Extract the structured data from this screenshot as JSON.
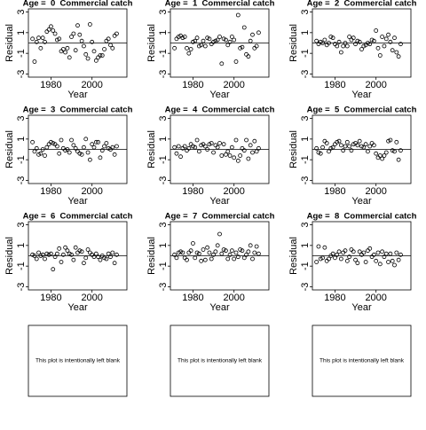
{
  "chart_data": [
    {
      "type": "scatter",
      "title": "Age =  0  Commercial catch",
      "x_label": "Year",
      "y_label": "Residual",
      "color": "#000000",
      "hline": 0,
      "xlim": [
        1969,
        2017
      ],
      "ylim": [
        -3.3,
        3.3
      ],
      "xticks": [
        1980,
        2000
      ],
      "yticks": [
        -3,
        -1,
        1,
        3
      ],
      "x": [
        1971,
        1972,
        1973,
        1974,
        1975,
        1976,
        1977,
        1978,
        1979,
        1980,
        1981,
        1982,
        1983,
        1984,
        1985,
        1986,
        1987,
        1988,
        1989,
        1990,
        1991,
        1992,
        1993,
        1994,
        1995,
        1996,
        1997,
        1998,
        1999,
        2000,
        2001,
        2002,
        2003,
        2004,
        2005,
        2006,
        2007,
        2008,
        2009,
        2010,
        2011,
        2012
      ],
      "values": [
        0.4,
        -1.8,
        0.1,
        0.5,
        -0.5,
        0.5,
        0.1,
        1.1,
        1.3,
        1.6,
        1.2,
        0.9,
        0.3,
        0.4,
        -0.8,
        -0.6,
        -0.9,
        -0.5,
        -1.4,
        0.6,
        0.9,
        -0.7,
        1.7,
        0.8,
        0.2,
        -0.3,
        -1.1,
        -1.5,
        1.8,
        0.1,
        -0.8,
        -1.7,
        -1.4,
        -1.2,
        -1.2,
        -0.6,
        0.2,
        0.4,
        -0.2,
        -0.5,
        0.7,
        0.9
      ]
    },
    {
      "type": "scatter",
      "title": "Age =  1  Commercial catch",
      "x_label": "Year",
      "y_label": "Residual",
      "color": "#000000",
      "hline": 0,
      "xlim": [
        1969,
        2017
      ],
      "ylim": [
        -3.3,
        3.3
      ],
      "xticks": [
        1980,
        2000
      ],
      "yticks": [
        -3,
        -1,
        1,
        3
      ],
      "x": [
        1971,
        1972,
        1973,
        1974,
        1975,
        1976,
        1977,
        1978,
        1979,
        1980,
        1981,
        1982,
        1983,
        1984,
        1985,
        1986,
        1987,
        1988,
        1989,
        1990,
        1991,
        1992,
        1993,
        1994,
        1995,
        1996,
        1997,
        1998,
        1999,
        2000,
        2001,
        2002,
        2003,
        2004,
        2005,
        2006,
        2007,
        2008,
        2009,
        2010,
        2011,
        2012
      ],
      "values": [
        -0.5,
        0.4,
        0.6,
        0.7,
        0.5,
        0.6,
        -0.5,
        -1.0,
        -0.6,
        0.1,
        0.2,
        0.5,
        -0.3,
        -0.2,
        0.2,
        -0.3,
        0.5,
        0.4,
        -0.1,
        0.1,
        0.2,
        0.3,
        0.6,
        -2.0,
        0.4,
        0.3,
        -0.2,
        0.1,
        0.6,
        0.3,
        -1.8,
        2.7,
        -0.5,
        -0.4,
        1.5,
        -1.1,
        -1.3,
        0.2,
        0.8,
        -0.5,
        -0.3,
        1.0
      ]
    },
    {
      "type": "scatter",
      "title": "Age =  2  Commercial catch",
      "x_label": "Year",
      "y_label": "Residual",
      "color": "#000000",
      "hline": 0,
      "xlim": [
        1969,
        2017
      ],
      "ylim": [
        -3.3,
        3.3
      ],
      "xticks": [
        1980,
        2000
      ],
      "yticks": [
        -3,
        -1,
        1,
        3
      ],
      "x": [
        1971,
        1972,
        1973,
        1974,
        1975,
        1976,
        1977,
        1978,
        1979,
        1980,
        1981,
        1982,
        1983,
        1984,
        1985,
        1986,
        1987,
        1988,
        1989,
        1990,
        1991,
        1992,
        1993,
        1994,
        1995,
        1996,
        1997,
        1998,
        1999,
        2000,
        2001,
        2002,
        2003,
        2004,
        2005,
        2006,
        2007,
        2008,
        2009,
        2010,
        2011,
        2012
      ],
      "values": [
        0.2,
        -0.1,
        0.1,
        0,
        0.3,
        -0.2,
        0,
        0.6,
        0.5,
        -0.1,
        -0.3,
        0.1,
        -0.9,
        -0.3,
        0,
        -0.3,
        0.6,
        0.3,
        0.5,
        -0.1,
        0.2,
        0.1,
        -0.6,
        -0.3,
        -0.2,
        0,
        -0.1,
        0.3,
        0.2,
        1.2,
        -0.5,
        -1.2,
        0.6,
        -0.3,
        0.4,
        0.8,
        0.1,
        -0.7,
        0.5,
        -0.9,
        -1.3,
        -0.1
      ]
    },
    {
      "type": "scatter",
      "title": "Age =  3  Commercial catch",
      "x_label": "Year",
      "y_label": "Residual",
      "color": "#000000",
      "hline": 0,
      "xlim": [
        1969,
        2017
      ],
      "ylim": [
        -3.3,
        3.3
      ],
      "xticks": [
        1980,
        2000
      ],
      "yticks": [
        -3,
        -1,
        1,
        3
      ],
      "x": [
        1971,
        1972,
        1973,
        1974,
        1975,
        1976,
        1977,
        1978,
        1979,
        1980,
        1981,
        1982,
        1983,
        1984,
        1985,
        1986,
        1987,
        1988,
        1989,
        1990,
        1991,
        1992,
        1993,
        1994,
        1995,
        1996,
        1997,
        1998,
        1999,
        2000,
        2001,
        2002,
        2003,
        2004,
        2005,
        2006,
        2007,
        2008,
        2009,
        2010,
        2011,
        2012
      ],
      "values": [
        0.7,
        -0.2,
        0.1,
        -0.5,
        -0.4,
        0,
        -0.6,
        0.2,
        0.5,
        0.7,
        0.6,
        0.5,
        0.3,
        -0.4,
        0.9,
        0.1,
        -0.1,
        0,
        -0.3,
        0.9,
        0.4,
        0.1,
        -0.2,
        -0.4,
        -0.5,
        0.2,
        1.0,
        -0.3,
        -1.0,
        0.5,
        0.2,
        0.7,
        0.7,
        -0.8,
        -0.1,
        0.3,
        0.6,
        0.1,
        0,
        0.2,
        -0.5,
        0.3
      ]
    },
    {
      "type": "scatter",
      "title": "Age =  4  Commercial catch",
      "x_label": "Year",
      "y_label": "Residual",
      "color": "#000000",
      "hline": 0,
      "xlim": [
        1969,
        2017
      ],
      "ylim": [
        -3.3,
        3.3
      ],
      "xticks": [
        1980,
        2000
      ],
      "yticks": [
        -3,
        -1,
        1,
        3
      ],
      "x": [
        1971,
        1972,
        1973,
        1974,
        1975,
        1976,
        1977,
        1978,
        1979,
        1980,
        1981,
        1982,
        1983,
        1984,
        1985,
        1986,
        1987,
        1988,
        1989,
        1990,
        1991,
        1992,
        1993,
        1994,
        1995,
        1996,
        1997,
        1998,
        1999,
        2000,
        2001,
        2002,
        2003,
        2004,
        2005,
        2006,
        2007,
        2008,
        2009,
        2010,
        2011,
        2012
      ],
      "values": [
        0.2,
        -0.4,
        0.3,
        -0.7,
        0.1,
        0.3,
        -0.1,
        0.1,
        0.5,
        0.3,
        0.2,
        0.9,
        -0.2,
        0.4,
        0.5,
        0.3,
        0,
        0.5,
        0.6,
        -0.3,
        0.4,
        0.2,
        0.6,
        -0.6,
        0.5,
        -0.5,
        -0.2,
        -0.6,
        0.2,
        -0.8,
        0.9,
        -1.1,
        -0.6,
        0.1,
        -0.1,
        0.9,
        -0.9,
        0.4,
        -0.3,
        0.8,
        -0.2,
        0.1
      ]
    },
    {
      "type": "scatter",
      "title": "Age =  5  Commercial catch",
      "x_label": "Year",
      "y_label": "Residual",
      "color": "#000000",
      "hline": 0,
      "xlim": [
        1969,
        2017
      ],
      "ylim": [
        -3.3,
        3.3
      ],
      "xticks": [
        1980,
        2000
      ],
      "yticks": [
        -3,
        -1,
        1,
        3
      ],
      "x": [
        1971,
        1972,
        1973,
        1974,
        1975,
        1976,
        1977,
        1978,
        1979,
        1980,
        1981,
        1982,
        1983,
        1984,
        1985,
        1986,
        1987,
        1988,
        1989,
        1990,
        1991,
        1992,
        1993,
        1994,
        1995,
        1996,
        1997,
        1998,
        1999,
        2000,
        2001,
        2002,
        2003,
        2004,
        2005,
        2006,
        2007,
        2008,
        2009,
        2010,
        2011,
        2012
      ],
      "values": [
        0.1,
        -0.3,
        -0.4,
        0.2,
        0.8,
        0.6,
        -0.2,
        0.1,
        0.2,
        0.5,
        0.7,
        0.8,
        0.4,
        -0.1,
        0.3,
        0.7,
        0.3,
        -0.1,
        0.5,
        0.6,
        0.4,
        0.8,
        0.3,
        0.2,
        0.5,
        -0.2,
        0.3,
        0.6,
        0.4,
        -0.4,
        -0.8,
        -0.6,
        -0.9,
        -0.6,
        -0.3,
        0.8,
        0.9,
        -0.1,
        -0.2,
        0.7,
        -1.0,
        -0.1
      ]
    },
    {
      "type": "scatter",
      "title": "Age =  6  Commercial catch",
      "x_label": "Year",
      "y_label": "Residual",
      "color": "#000000",
      "hline": 0,
      "xlim": [
        1969,
        2017
      ],
      "ylim": [
        -3.3,
        3.3
      ],
      "xticks": [
        1980,
        2000
      ],
      "yticks": [
        -3,
        -1,
        1,
        3
      ],
      "x": [
        1971,
        1972,
        1973,
        1974,
        1975,
        1976,
        1977,
        1978,
        1979,
        1980,
        1981,
        1982,
        1983,
        1984,
        1985,
        1986,
        1987,
        1988,
        1989,
        1990,
        1991,
        1992,
        1993,
        1994,
        1995,
        1996,
        1997,
        1998,
        1999,
        2000,
        2001,
        2002,
        2003,
        2004,
        2005,
        2006,
        2007,
        2008,
        2009,
        2010,
        2011,
        2012
      ],
      "values": [
        0.1,
        0,
        -0.3,
        0.3,
        0,
        0.1,
        -0.3,
        0.2,
        0.1,
        0.2,
        -1.3,
        -0.1,
        0.2,
        0.7,
        -0.6,
        0.1,
        0.8,
        0.5,
        0.2,
        0.1,
        -0.4,
        0.8,
        0.3,
        0.5,
        0.4,
        -0.7,
        -0.2,
        0.6,
        0.3,
        0.1,
        -0.1,
        0.2,
        -0.1,
        -0.4,
        0,
        -0.2,
        -0.3,
        0.2,
        -0.1,
        0.3,
        -0.7,
        0.1
      ]
    },
    {
      "type": "scatter",
      "title": "Age =  7  Commercial catch",
      "x_label": "Year",
      "y_label": "Residual",
      "color": "#000000",
      "hline": 0,
      "xlim": [
        1969,
        2017
      ],
      "ylim": [
        -3.3,
        3.3
      ],
      "xticks": [
        1980,
        2000
      ],
      "yticks": [
        -3,
        -1,
        1,
        3
      ],
      "x": [
        1971,
        1972,
        1973,
        1974,
        1975,
        1976,
        1977,
        1978,
        1979,
        1980,
        1981,
        1982,
        1983,
        1984,
        1985,
        1986,
        1987,
        1988,
        1989,
        1990,
        1991,
        1992,
        1993,
        1994,
        1995,
        1996,
        1997,
        1998,
        1999,
        2000,
        2001,
        2002,
        2003,
        2004,
        2005,
        2006,
        2007,
        2008,
        2009,
        2010,
        2011,
        2012
      ],
      "values": [
        0.1,
        -0.2,
        0.3,
        0.4,
        0.3,
        -0.2,
        -0.4,
        0.3,
        0.5,
        1.2,
        -0.2,
        0.3,
        0.2,
        -0.5,
        0.6,
        -0.4,
        0.8,
        0.3,
        -0.3,
        0.1,
        0.4,
        1.0,
        2.1,
        0.2,
        0.6,
        0.5,
        -0.3,
        0.1,
        0.5,
        -0.3,
        0.3,
        -0.1,
        0.6,
        0.5,
        -0.2,
        0.1,
        0.4,
        1.0,
        -0.3,
        0.3,
        0.9,
        0.2
      ]
    },
    {
      "type": "scatter",
      "title": "Age =  8  Commercial catch",
      "x_label": "Year",
      "y_label": "Residual",
      "color": "#000000",
      "hline": 0,
      "xlim": [
        1969,
        2017
      ],
      "ylim": [
        -3.3,
        3.3
      ],
      "xticks": [
        1980,
        2000
      ],
      "yticks": [
        -3,
        -1,
        1,
        3
      ],
      "x": [
        1971,
        1972,
        1973,
        1974,
        1975,
        1976,
        1977,
        1978,
        1979,
        1980,
        1981,
        1982,
        1983,
        1984,
        1985,
        1986,
        1987,
        1988,
        1989,
        1990,
        1991,
        1992,
        1993,
        1994,
        1995,
        1996,
        1997,
        1998,
        1999,
        2000,
        2001,
        2002,
        2003,
        2004,
        2005,
        2006,
        2007,
        2008,
        2009,
        2010,
        2011,
        2012
      ],
      "values": [
        -0.6,
        0.9,
        -0.3,
        -0.2,
        0.8,
        -0.5,
        -0.3,
        0,
        0.2,
        -0.2,
        0.1,
        0.4,
        -0.3,
        0.3,
        0.5,
        -0.5,
        -0.1,
        0.6,
        0.4,
        -0.4,
        -0.7,
        0.4,
        0.1,
        0.3,
        -0.6,
        0.5,
        0.7,
        -0.1,
        0.1,
        -0.5,
        0.3,
        -0.8,
        0.4,
        -0.1,
        0.2,
        -0.6,
        0.2,
        -0.5,
        -0.9,
        0.3,
        -0.4,
        0.1
      ]
    }
  ],
  "blank_panels": [
    "This plot is intentionally left blank",
    "This plot is intentionally left blank",
    "This plot is intentionally left blank"
  ]
}
